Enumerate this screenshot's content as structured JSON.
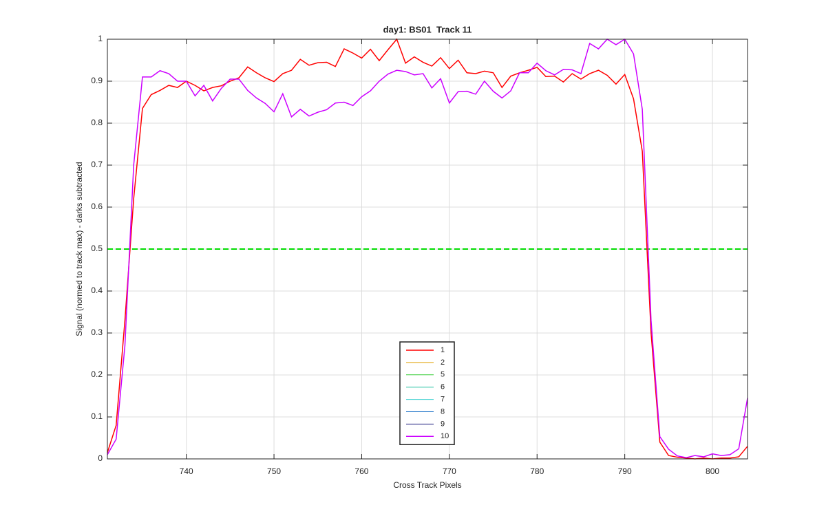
{
  "chart_data": {
    "type": "line",
    "title": "day1: BS01  Track 11",
    "xlabel": "Cross Track Pixels",
    "ylabel": "Signal (normed to track max) - darks subtracted",
    "x": [
      731,
      732,
      733,
      734,
      735,
      736,
      737,
      738,
      739,
      740,
      741,
      742,
      743,
      744,
      745,
      746,
      747,
      748,
      749,
      750,
      751,
      752,
      753,
      754,
      755,
      756,
      757,
      758,
      759,
      760,
      761,
      762,
      763,
      764,
      765,
      766,
      767,
      768,
      769,
      770,
      771,
      772,
      773,
      774,
      775,
      776,
      777,
      778,
      779,
      780,
      781,
      782,
      783,
      784,
      785,
      786,
      787,
      788,
      789,
      790,
      791,
      792,
      793,
      794,
      795,
      796,
      797,
      798,
      799,
      800,
      801,
      802,
      803,
      804
    ],
    "xlim": [
      731,
      804
    ],
    "xticks": [
      740,
      750,
      760,
      770,
      780,
      790,
      800
    ],
    "ylim": [
      0,
      1
    ],
    "yticks": [
      0,
      0.1,
      0.2,
      0.3,
      0.4,
      0.5,
      0.6,
      0.7,
      0.8,
      0.9,
      1
    ],
    "grid": true,
    "hline": {
      "value": 0.5,
      "color": "#00dd00"
    },
    "series": [
      {
        "name": "1",
        "color": "#ff0000",
        "values": [
          0.015,
          0.08,
          0.33,
          0.62,
          0.835,
          0.868,
          0.878,
          0.89,
          0.885,
          0.9,
          0.89,
          0.877,
          0.885,
          0.889,
          0.9,
          0.908,
          0.934,
          0.92,
          0.908,
          0.899,
          0.918,
          0.926,
          0.952,
          0.938,
          0.944,
          0.945,
          0.935,
          0.977,
          0.967,
          0.955,
          0.976,
          0.949,
          0.975,
          1.0,
          0.943,
          0.958,
          0.945,
          0.936,
          0.956,
          0.93,
          0.95,
          0.92,
          0.918,
          0.924,
          0.92,
          0.885,
          0.912,
          0.92,
          0.926,
          0.933,
          0.911,
          0.912,
          0.898,
          0.918,
          0.905,
          0.918,
          0.926,
          0.914,
          0.893,
          0.916,
          0.858,
          0.733,
          0.3,
          0.04,
          0.008,
          0.004,
          0.002,
          0.0,
          0.002,
          0.0,
          0.002,
          0.002,
          0.005,
          0.03
        ]
      },
      {
        "name": "2",
        "color": "#e0a000",
        "values": [
          null,
          null,
          null,
          null,
          null,
          null,
          null,
          null,
          null,
          null,
          null,
          null,
          null,
          null,
          null,
          null,
          null,
          null,
          null,
          null,
          null,
          null,
          null,
          null,
          null,
          null,
          null,
          null,
          null,
          null,
          null,
          null,
          null,
          null,
          null,
          null,
          null,
          null,
          null,
          null,
          null,
          null,
          null,
          null,
          null,
          null,
          null,
          null,
          null,
          null,
          null,
          null,
          null,
          null,
          null,
          null,
          null,
          null,
          null,
          null,
          null,
          null,
          null,
          null,
          null,
          null,
          null,
          null,
          null,
          null,
          null,
          null,
          null,
          null
        ]
      },
      {
        "name": "5",
        "color": "#33cc33",
        "values": [
          null,
          null,
          null,
          null,
          null,
          null,
          null,
          null,
          null,
          null,
          null,
          null,
          null,
          null,
          null,
          null,
          null,
          null,
          null,
          null,
          null,
          null,
          null,
          null,
          null,
          null,
          null,
          null,
          null,
          null,
          null,
          null,
          null,
          null,
          null,
          null,
          null,
          null,
          null,
          null,
          null,
          null,
          null,
          null,
          null,
          null,
          null,
          null,
          null,
          null,
          null,
          null,
          null,
          null,
          null,
          null,
          null,
          null,
          null,
          null,
          null,
          null,
          null,
          null,
          null,
          null,
          null,
          null,
          null,
          null,
          null,
          null,
          null,
          null
        ]
      },
      {
        "name": "6",
        "color": "#20c0a0",
        "values": [
          null,
          null,
          null,
          null,
          null,
          null,
          null,
          null,
          null,
          null,
          null,
          null,
          null,
          null,
          null,
          null,
          null,
          null,
          null,
          null,
          null,
          null,
          null,
          null,
          null,
          null,
          null,
          null,
          null,
          null,
          null,
          null,
          null,
          null,
          null,
          null,
          null,
          null,
          null,
          null,
          null,
          null,
          null,
          null,
          null,
          null,
          null,
          null,
          null,
          null,
          null,
          null,
          null,
          null,
          null,
          null,
          null,
          null,
          null,
          null,
          null,
          null,
          null,
          null,
          null,
          null,
          null,
          null,
          null,
          null,
          null,
          null,
          null,
          null
        ]
      },
      {
        "name": "7",
        "color": "#40d0d0",
        "values": [
          null,
          null,
          null,
          null,
          null,
          null,
          null,
          null,
          null,
          null,
          null,
          null,
          null,
          null,
          null,
          null,
          null,
          null,
          null,
          null,
          null,
          null,
          null,
          null,
          null,
          null,
          null,
          null,
          null,
          null,
          null,
          null,
          null,
          null,
          null,
          null,
          null,
          null,
          null,
          null,
          null,
          null,
          null,
          null,
          null,
          null,
          null,
          null,
          null,
          null,
          null,
          null,
          null,
          null,
          null,
          null,
          null,
          null,
          null,
          null,
          null,
          null,
          null,
          null,
          null,
          null,
          null,
          null,
          null,
          null,
          null,
          null,
          null,
          null
        ]
      },
      {
        "name": "8",
        "color": "#0060c0",
        "values": [
          null,
          null,
          null,
          null,
          null,
          null,
          null,
          null,
          null,
          null,
          null,
          null,
          null,
          null,
          null,
          null,
          null,
          null,
          null,
          null,
          null,
          null,
          null,
          null,
          null,
          null,
          null,
          null,
          null,
          null,
          null,
          null,
          null,
          null,
          null,
          null,
          null,
          null,
          null,
          null,
          null,
          null,
          null,
          null,
          null,
          null,
          null,
          null,
          null,
          null,
          null,
          null,
          null,
          null,
          null,
          null,
          null,
          null,
          null,
          null,
          null,
          null,
          null,
          null,
          null,
          null,
          null,
          null,
          null,
          null,
          null,
          null,
          null,
          null
        ]
      },
      {
        "name": "9",
        "color": "#202080",
        "values": [
          null,
          null,
          null,
          null,
          null,
          null,
          null,
          null,
          null,
          null,
          null,
          null,
          null,
          null,
          null,
          null,
          null,
          null,
          null,
          null,
          null,
          null,
          null,
          null,
          null,
          null,
          null,
          null,
          null,
          null,
          null,
          null,
          null,
          null,
          null,
          null,
          null,
          null,
          null,
          null,
          null,
          null,
          null,
          null,
          null,
          null,
          null,
          null,
          null,
          null,
          null,
          null,
          null,
          null,
          null,
          null,
          null,
          null,
          null,
          null,
          null,
          null,
          null,
          null,
          null,
          null,
          null,
          null,
          null,
          null,
          null,
          null,
          null,
          null
        ]
      },
      {
        "name": "10",
        "color": "#cc00ff",
        "values": [
          0.01,
          0.047,
          0.27,
          0.7,
          0.91,
          0.91,
          0.925,
          0.918,
          0.9,
          0.9,
          0.865,
          0.89,
          0.853,
          0.883,
          0.905,
          0.905,
          0.878,
          0.86,
          0.847,
          0.827,
          0.87,
          0.815,
          0.833,
          0.817,
          0.826,
          0.832,
          0.848,
          0.85,
          0.842,
          0.863,
          0.877,
          0.9,
          0.917,
          0.926,
          0.923,
          0.915,
          0.918,
          0.884,
          0.906,
          0.848,
          0.875,
          0.876,
          0.869,
          0.9,
          0.876,
          0.86,
          0.877,
          0.92,
          0.92,
          0.943,
          0.925,
          0.915,
          0.928,
          0.927,
          0.918,
          0.99,
          0.977,
          1.0,
          0.987,
          1.0,
          0.965,
          0.833,
          0.33,
          0.053,
          0.023,
          0.007,
          0.003,
          0.008,
          0.005,
          0.012,
          0.008,
          0.01,
          0.024,
          0.145
        ]
      }
    ]
  }
}
